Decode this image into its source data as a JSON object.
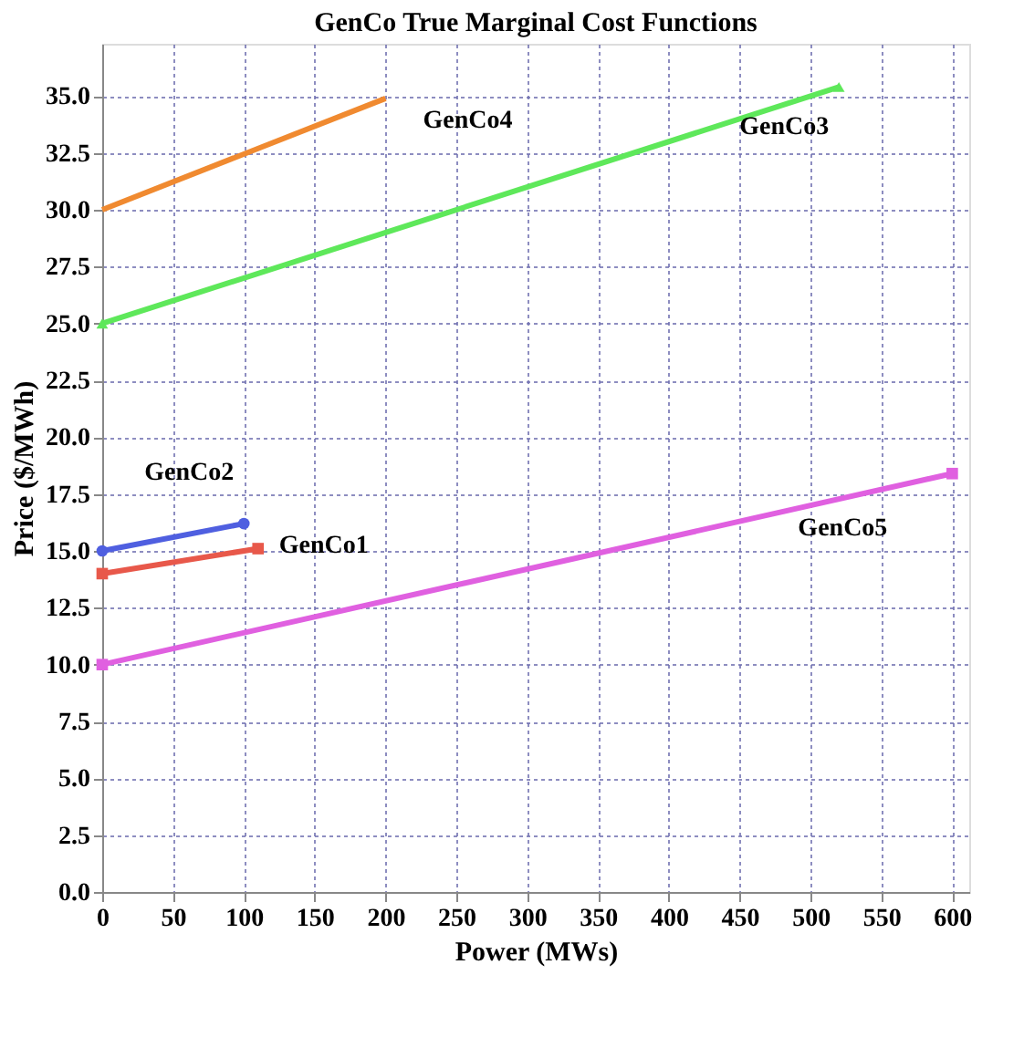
{
  "chart_data": {
    "type": "line",
    "title": "GenCo True Marginal Cost Functions",
    "xlabel": "Power (MWs)",
    "ylabel": "Price ($/MWh)",
    "xlim": [
      0,
      612
    ],
    "xticks": [
      0,
      50,
      100,
      150,
      200,
      250,
      300,
      350,
      400,
      450,
      500,
      550,
      600
    ],
    "ylim": [
      0,
      37.3
    ],
    "yticks": [
      {
        "value": 0,
        "label": "0.0"
      },
      {
        "value": 2.5,
        "label": "2.5"
      },
      {
        "value": 5,
        "label": "5.0"
      },
      {
        "value": 7.5,
        "label": "7.5"
      },
      {
        "value": 10,
        "label": "10.0"
      },
      {
        "value": 12.5,
        "label": "12.5"
      },
      {
        "value": 15,
        "label": "15.0"
      },
      {
        "value": 17.5,
        "label": "17.5"
      },
      {
        "value": 20,
        "label": "20.0"
      },
      {
        "value": 22.5,
        "label": "22.5"
      },
      {
        "value": 25,
        "label": "25.0"
      },
      {
        "value": 27.5,
        "label": "27.5"
      },
      {
        "value": 30,
        "label": "30.0"
      },
      {
        "value": 32.5,
        "label": "32.5"
      },
      {
        "value": 35,
        "label": "35.0"
      }
    ],
    "grid": true,
    "line_style": "solid",
    "series": [
      {
        "name": "GenCo1",
        "color": "#e8584a",
        "marker": "square",
        "x": [
          0,
          110
        ],
        "values": [
          14,
          15.1
        ]
      },
      {
        "name": "GenCo2",
        "color": "#4f5fe0",
        "marker": "circle",
        "x": [
          0,
          100
        ],
        "values": [
          15,
          16.2
        ]
      },
      {
        "name": "GenCo3",
        "color": "#5ee85a",
        "marker": "triangle",
        "x": [
          0,
          520
        ],
        "values": [
          25,
          35.4
        ]
      },
      {
        "name": "GenCo4",
        "color": "#f08a30",
        "marker": "none",
        "x": [
          0,
          200
        ],
        "values": [
          30,
          34.9
        ]
      },
      {
        "name": "GenCo5",
        "color": "#e060e0",
        "marker": "square",
        "x": [
          0,
          600
        ],
        "values": [
          10,
          18.4
        ]
      }
    ]
  }
}
